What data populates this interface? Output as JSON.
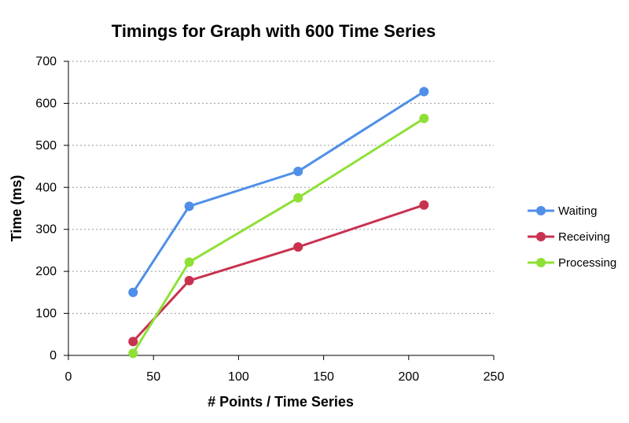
{
  "chart_data": {
    "type": "line",
    "title": "Timings for Graph with 600 Time Series",
    "xlabel": "# Points / Time Series",
    "ylabel": "Time (ms)",
    "xlim": [
      0,
      250
    ],
    "ylim": [
      0,
      700
    ],
    "xticks": [
      0,
      50,
      100,
      150,
      200,
      250
    ],
    "yticks": [
      0,
      100,
      200,
      300,
      400,
      500,
      600,
      700
    ],
    "grid": "horizontal-dotted",
    "legend": "right",
    "series": [
      {
        "name": "Waiting",
        "color": "#4f8fe8",
        "x": [
          38,
          71,
          135,
          209
        ],
        "y": [
          150,
          355,
          438,
          628
        ]
      },
      {
        "name": "Receiving",
        "color": "#c8324f",
        "x": [
          38,
          71,
          135,
          209
        ],
        "y": [
          33,
          178,
          258,
          358
        ]
      },
      {
        "name": "Processing",
        "color": "#8ee036",
        "x": [
          38,
          71,
          135,
          209
        ],
        "y": [
          5,
          222,
          375,
          564
        ]
      }
    ]
  }
}
